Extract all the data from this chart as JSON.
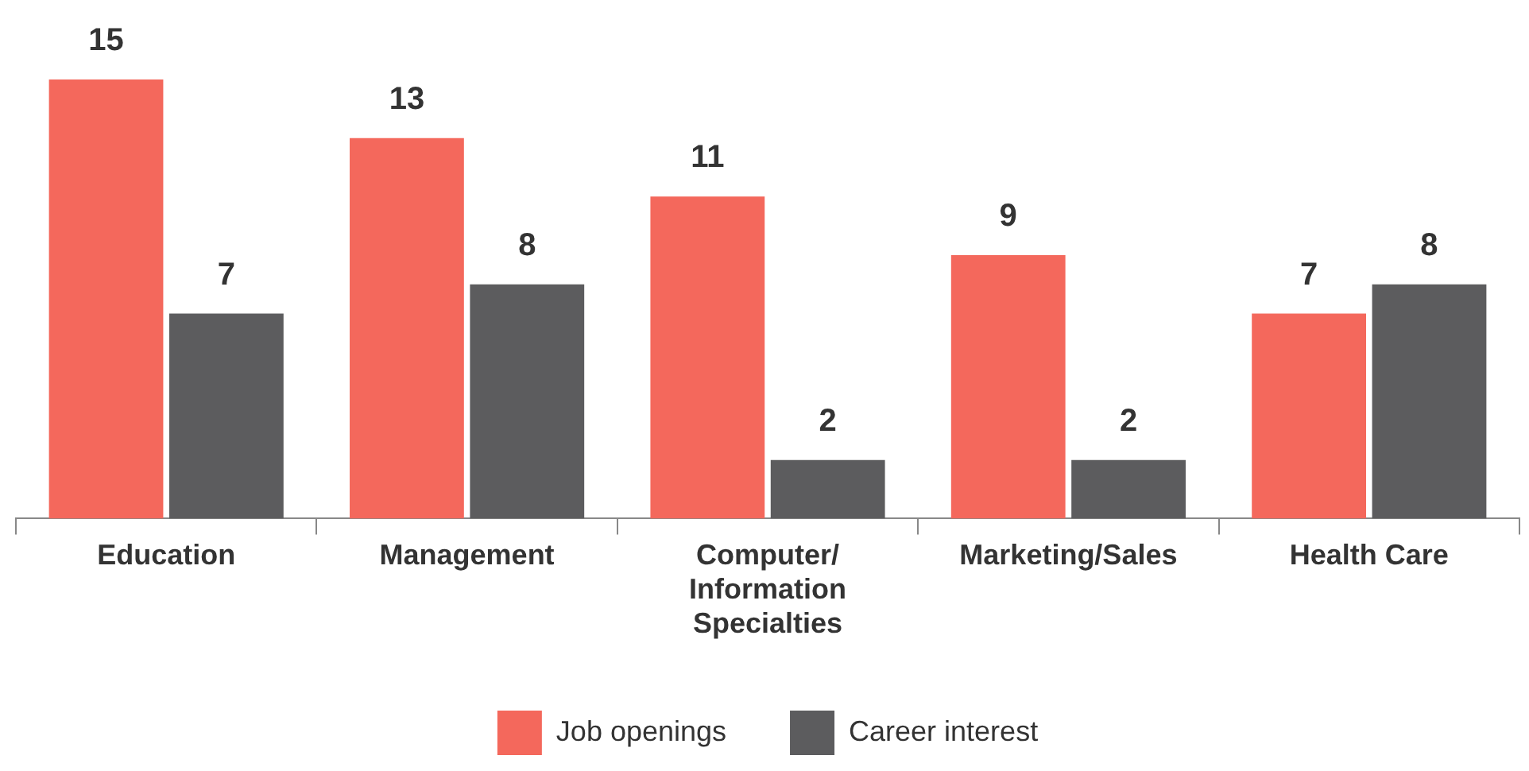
{
  "chart_data": {
    "type": "bar",
    "categories": [
      "Education",
      "Management",
      "Computer/ Information Specialties",
      "Marketing/Sales",
      "Health Care"
    ],
    "series": [
      {
        "name": "Job openings",
        "color": "#f4685c",
        "values": [
          15,
          13,
          11,
          9,
          7
        ]
      },
      {
        "name": "Career interest",
        "color": "#5c5c5e",
        "values": [
          7,
          8,
          2,
          2,
          8
        ]
      }
    ],
    "data_labels": true,
    "legend": "bottom",
    "grid": false
  }
}
